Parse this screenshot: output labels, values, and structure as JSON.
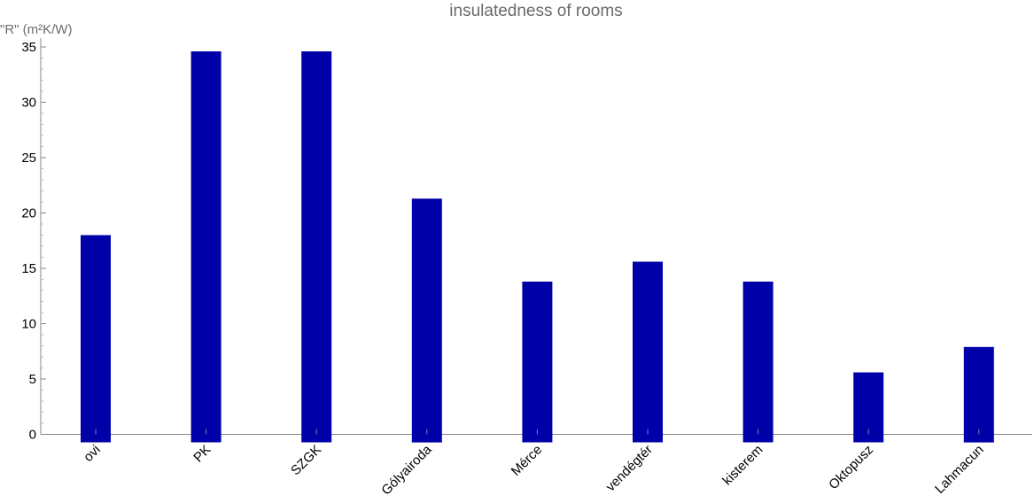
{
  "chart_data": {
    "type": "bar",
    "title": "insulatedness of rooms",
    "xlabel": "",
    "ylabel": "\"R\" (m²K/W)",
    "categories": [
      "ovi",
      "PK",
      "SZGK",
      "Gólyairoda",
      "Mérce",
      "vendégtér",
      "kisterem",
      "Oktopusz",
      "Lahmacun"
    ],
    "values": [
      18.0,
      34.6,
      34.6,
      21.3,
      13.8,
      15.6,
      13.8,
      5.6,
      7.9
    ],
    "ylim": [
      0,
      35
    ],
    "yticks": [
      "0",
      "5",
      "10",
      "15",
      "20",
      "25",
      "30",
      "35"
    ],
    "bar_color": "#0000a8",
    "grid": false,
    "legend": "none"
  }
}
